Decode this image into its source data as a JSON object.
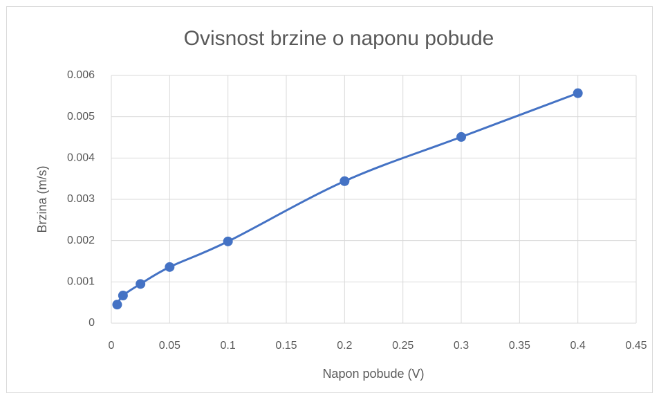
{
  "chart_data": {
    "type": "line",
    "title": "Ovisnost brzine o naponu pobude",
    "xlabel": "Napon pobude (V)",
    "ylabel": "Brzina (m/s)",
    "x": [
      0.005,
      0.01,
      0.025,
      0.05,
      0.1,
      0.2,
      0.3,
      0.4
    ],
    "series": [
      {
        "name": "Brzina",
        "color": "#4472c4",
        "values": [
          0.00045,
          0.00067,
          0.00095,
          0.00136,
          0.00198,
          0.00344,
          0.00451,
          0.00557
        ]
      }
    ],
    "xlim": [
      0,
      0.45
    ],
    "xticks": [
      0,
      0.05,
      0.1,
      0.15,
      0.2,
      0.25,
      0.3,
      0.35,
      0.4,
      0.45
    ],
    "ylim": [
      0,
      0.006
    ],
    "yticks": [
      0,
      0.001,
      0.002,
      0.003,
      0.004,
      0.005,
      0.006
    ],
    "grid": true,
    "smooth": true
  }
}
